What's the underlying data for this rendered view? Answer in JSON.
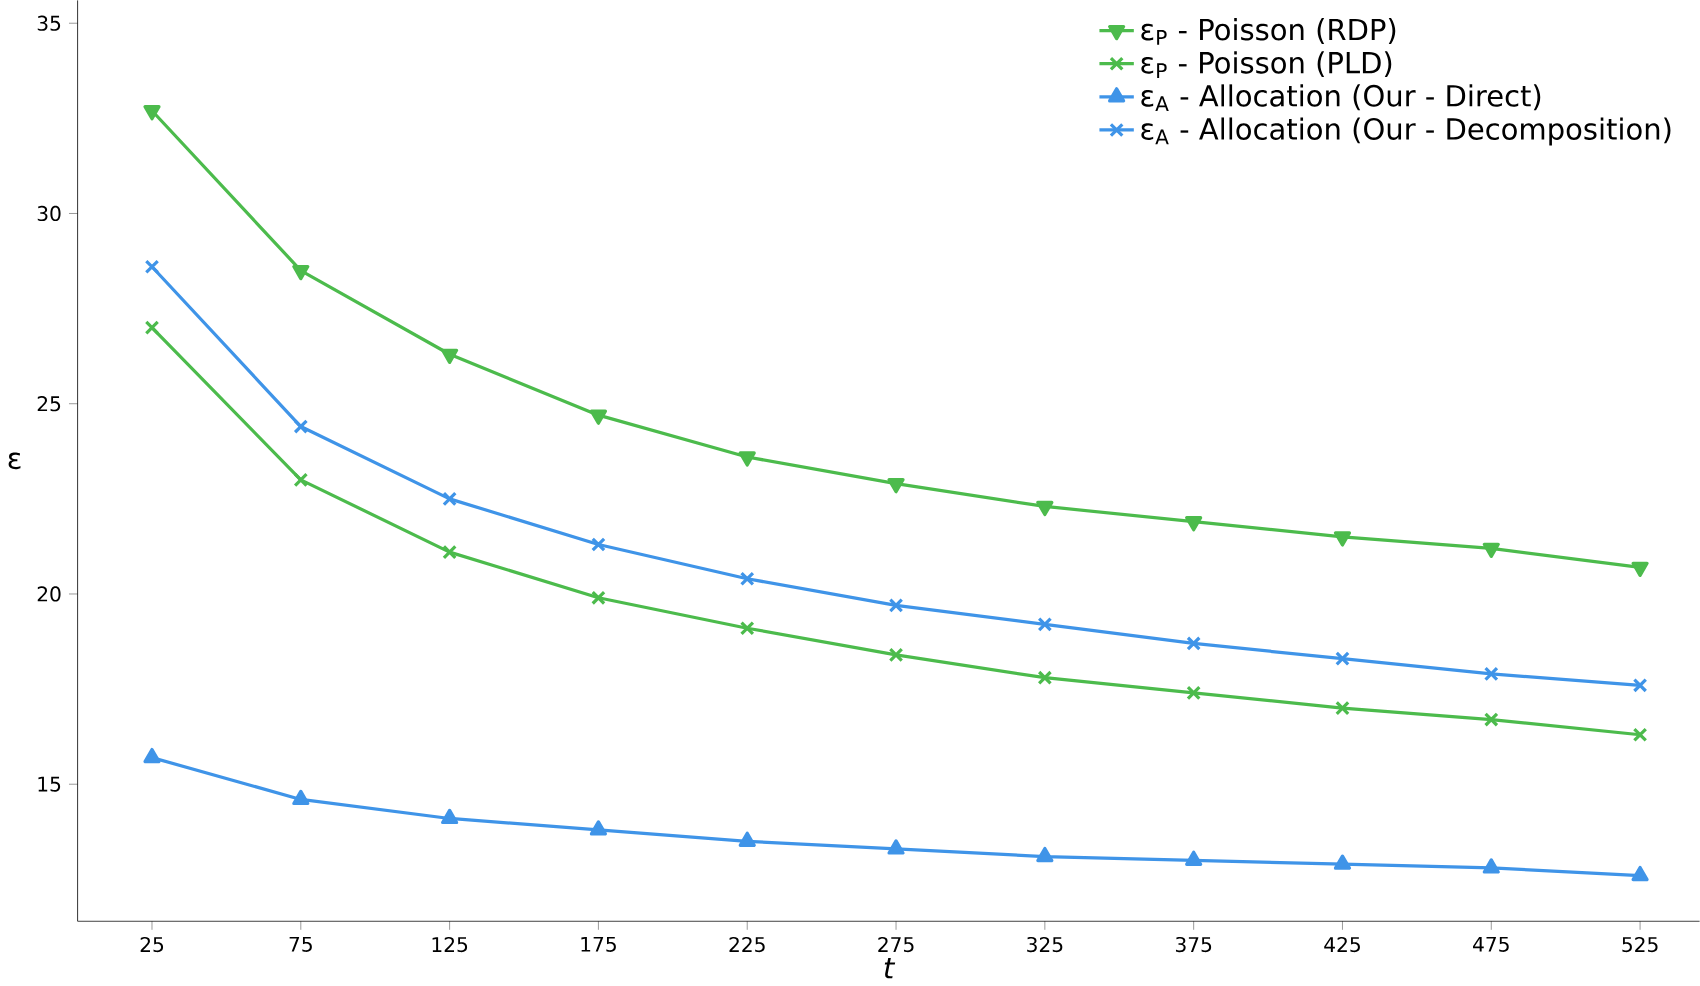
{
  "chart_data": {
    "type": "line",
    "xlabel": "t",
    "ylabel": "ε",
    "x": [
      25,
      75,
      125,
      175,
      225,
      275,
      325,
      375,
      425,
      475,
      525
    ],
    "series": [
      {
        "name": "ε$_{P}$ - Poisson (RDP)",
        "color": "#4cbb4c",
        "marker": "triangle",
        "values": [
          32.7,
          28.5,
          26.3,
          24.7,
          23.6,
          22.9,
          22.3,
          21.9,
          21.5,
          21.2,
          20.7
        ]
      },
      {
        "name": "ε$_{P}$ - Poisson (PLD)",
        "color": "#4cbb4c",
        "marker": "cross",
        "values": [
          27.0,
          23.0,
          21.1,
          19.9,
          19.1,
          18.4,
          17.8,
          17.4,
          17.0,
          16.7,
          16.3
        ]
      },
      {
        "name": "ε$_{A}$ - Allocation (Our - Direct)",
        "color": "#3f94e8",
        "marker": "triangle",
        "values": [
          15.7,
          14.6,
          14.1,
          13.8,
          13.5,
          13.3,
          13.1,
          13.0,
          12.9,
          12.8,
          12.6
        ]
      },
      {
        "name": "ε$_{A}$ - Allocation (Our - Decomposition)",
        "color": "#3f94e8",
        "marker": "cross",
        "values": [
          28.6,
          24.4,
          22.5,
          21.3,
          20.4,
          19.7,
          19.2,
          18.7,
          18.3,
          17.9,
          17.6
        ]
      }
    ],
    "xlim": [
      0,
      545
    ],
    "ylim": [
      11.4,
      35.6
    ],
    "xticks": [
      25,
      75,
      125,
      175,
      225,
      275,
      325,
      375,
      425,
      475,
      525
    ],
    "yticks": [
      15,
      20,
      25,
      30,
      35
    ],
    "grid": false,
    "legend": "top right",
    "line_style": "solid"
  }
}
